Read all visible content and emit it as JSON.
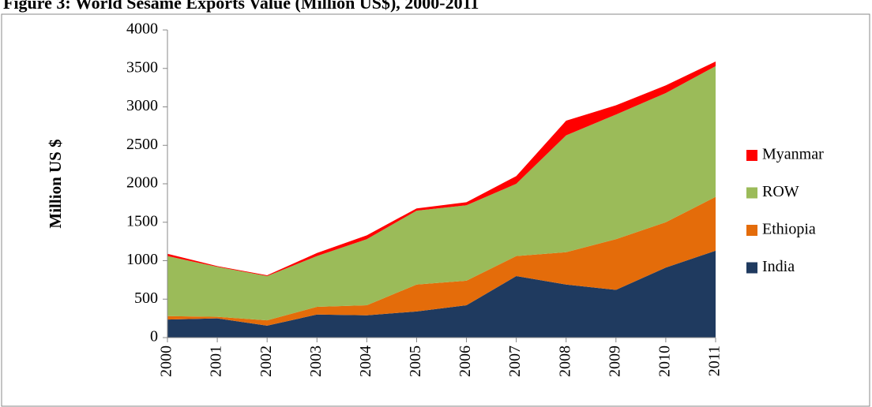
{
  "chart_data": {
    "type": "stacked-area",
    "title": "Figure 3: World Sesame Exports Value (Million US$), 2000-2011",
    "y_label": "Million US $",
    "categories": [
      "2000",
      "2001",
      "2002",
      "2003",
      "2004",
      "2005",
      "2006",
      "2007",
      "2008",
      "2009",
      "2010",
      "2011"
    ],
    "series": [
      {
        "name": "India",
        "color": "#1f3a5f",
        "values": [
          235,
          250,
          155,
          300,
          290,
          340,
          420,
          800,
          690,
          620,
          910,
          1130
        ]
      },
      {
        "name": "Ethiopia",
        "color": "#e46c0a",
        "values": [
          45,
          20,
          70,
          100,
          130,
          350,
          320,
          260,
          420,
          660,
          590,
          700
        ]
      },
      {
        "name": "ROW",
        "color": "#9bbb59",
        "values": [
          780,
          650,
          575,
          660,
          860,
          960,
          980,
          940,
          1520,
          1620,
          1680,
          1700
        ]
      },
      {
        "name": "Myanmar",
        "color": "#ff0000",
        "values": [
          30,
          10,
          10,
          40,
          50,
          30,
          40,
          100,
          190,
          120,
          100,
          60
        ]
      }
    ],
    "ylim": [
      0,
      4000
    ],
    "yticks": [
      0,
      500,
      1000,
      1500,
      2000,
      2500,
      3000,
      3500,
      4000
    ],
    "grid": false,
    "legend": "right"
  }
}
